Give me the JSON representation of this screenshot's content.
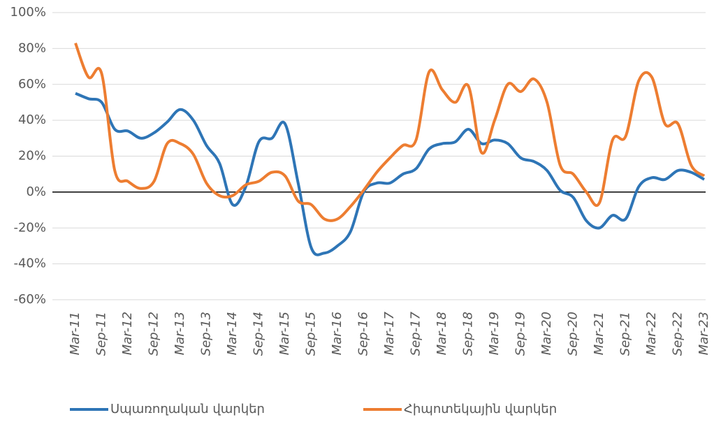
{
  "chart_data": {
    "type": "line",
    "categories": [
      "Mar-11",
      null,
      "Sep-11",
      null,
      "Mar-12",
      null,
      "Sep-12",
      null,
      "Mar-13",
      null,
      "Sep-13",
      null,
      "Mar-14",
      null,
      "Sep-14",
      null,
      "Mar-15",
      null,
      "Sep-15",
      null,
      "Mar-16",
      null,
      "Sep-16",
      null,
      "Mar-17",
      null,
      "Sep-17",
      null,
      "Mar-18",
      null,
      "Sep-18",
      null,
      "Mar-19",
      null,
      "Sep-19",
      null,
      "Mar-20",
      null,
      "Sep-20",
      null,
      "Mar-21",
      null,
      "Sep-21",
      null,
      "Mar-22",
      null,
      "Sep-22",
      null,
      "Mar-23"
    ],
    "series": [
      {
        "name": "Սպառողական վարկեր",
        "color": "#2e75b6",
        "values": [
          55,
          52,
          50,
          35,
          34,
          30,
          33,
          39,
          46,
          40,
          26,
          16,
          -7,
          3,
          28,
          30,
          38,
          5,
          -31,
          -34,
          -30,
          -22,
          0,
          5,
          5,
          10,
          13,
          24,
          27,
          28,
          35,
          27,
          29,
          27,
          19,
          17,
          12,
          1,
          -3,
          -16,
          -20,
          -13,
          -15,
          3,
          8,
          7,
          12,
          11,
          7
        ]
      },
      {
        "name": "Հիպոտեկային վարկեր",
        "color": "#ed7d31",
        "values": [
          83,
          64,
          66,
          12,
          6,
          2,
          6,
          27,
          27,
          21,
          5,
          -2,
          -2,
          4,
          6,
          11,
          9,
          -5,
          -7,
          -15,
          -15,
          -8,
          1,
          11,
          19,
          26,
          29,
          67,
          57,
          50,
          59,
          22,
          40,
          60,
          56,
          63,
          50,
          15,
          10,
          0,
          -6,
          29,
          31,
          62,
          64,
          38,
          38,
          15,
          9
        ]
      }
    ],
    "ylim": [
      -60,
      100
    ],
    "yticks": [
      {
        "value": -60,
        "label": "-60%"
      },
      {
        "value": -40,
        "label": "-40%"
      },
      {
        "value": -20,
        "label": "-20%"
      },
      {
        "value": 0,
        "label": "0%"
      },
      {
        "value": 20,
        "label": "20%"
      },
      {
        "value": 40,
        "label": "40%"
      },
      {
        "value": 60,
        "label": "60%"
      },
      {
        "value": 80,
        "label": "80%"
      },
      {
        "value": 100,
        "label": "100%"
      }
    ],
    "grid": true,
    "legend": "bottom"
  }
}
